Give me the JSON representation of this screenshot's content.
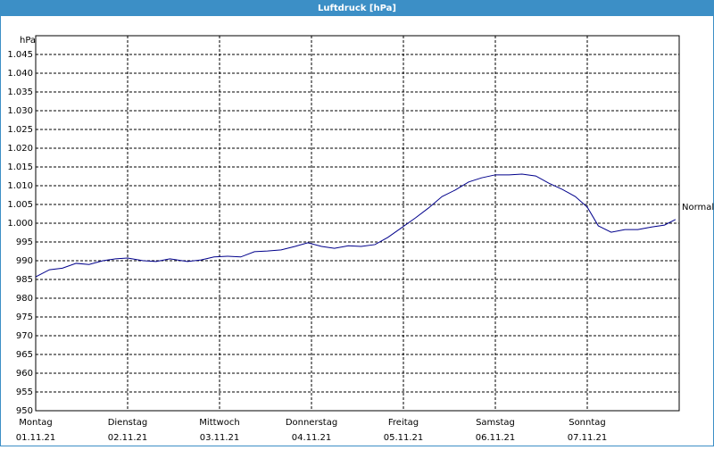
{
  "chart_data": {
    "type": "line",
    "title": "Luftdruck [hPa]",
    "y_label": "hPa",
    "annotation": "Normal",
    "xlim": [
      0,
      7
    ],
    "ylim": [
      950,
      1050
    ],
    "grid": true,
    "xticks": [
      {
        "value": 0,
        "label": "Montag"
      },
      {
        "value": 1,
        "label": "Dienstag"
      },
      {
        "value": 2,
        "label": "Mittwoch"
      },
      {
        "value": 3,
        "label": "Donnerstag"
      },
      {
        "value": 4,
        "label": "Freitag"
      },
      {
        "value": 5,
        "label": "Samstag"
      },
      {
        "value": 6,
        "label": "Sonntag"
      }
    ],
    "xtick_dates": [
      "01.11.21",
      "02.11.21",
      "03.11.21",
      "04.11.21",
      "05.11.21",
      "06.11.21",
      "07.11.21"
    ],
    "yticks": [
      950,
      955,
      960,
      965,
      970,
      975,
      980,
      985,
      990,
      995,
      {
        "value": 1000,
        "label": "1.000"
      },
      {
        "value": 1005,
        "label": "1.005"
      },
      {
        "value": 1010,
        "label": "1.010"
      },
      {
        "value": 1015,
        "label": "1.015"
      },
      {
        "value": 1020,
        "label": "1.020"
      },
      {
        "value": 1025,
        "label": "1.025"
      },
      {
        "value": 1030,
        "label": "1.030"
      },
      {
        "value": 1035,
        "label": "1.035"
      },
      {
        "value": 1040,
        "label": "1.040"
      },
      {
        "value": 1045,
        "label": "1.045"
      }
    ],
    "x": [
      0,
      0.15,
      0.29,
      0.44,
      0.58,
      0.73,
      0.87,
      1.0,
      1.17,
      1.31,
      1.46,
      1.65,
      1.8,
      1.94,
      2.09,
      2.23,
      2.38,
      2.52,
      2.67,
      2.82,
      2.96,
      3.11,
      3.25,
      3.4,
      3.54,
      3.69,
      3.83,
      3.98,
      4.13,
      4.27,
      4.42,
      4.56,
      4.71,
      4.85,
      5.0,
      5.15,
      5.29,
      5.44,
      5.58,
      5.73,
      5.87,
      6.0,
      6.12,
      6.26,
      6.41,
      6.55,
      6.7,
      6.84,
      6.96
    ],
    "series": [
      {
        "color": "#00008b",
        "values": [
          985.7,
          987.6,
          988,
          989.3,
          989,
          990,
          990.5,
          990.7,
          990,
          989.8,
          990.5,
          989.8,
          990.2,
          991,
          991.2,
          991,
          992.4,
          992.6,
          992.9,
          993.8,
          994.8,
          993.8,
          993.3,
          994,
          993.8,
          994.3,
          996.2,
          998.8,
          1001.4,
          1004,
          1007.1,
          1008.8,
          1011,
          1012.1,
          1012.9,
          1012.9,
          1013.1,
          1012.6,
          1010.7,
          1009,
          1007.1,
          1004.3,
          999.3,
          997.6,
          998.3,
          998.3,
          999,
          999.5,
          1001
        ]
      }
    ]
  }
}
